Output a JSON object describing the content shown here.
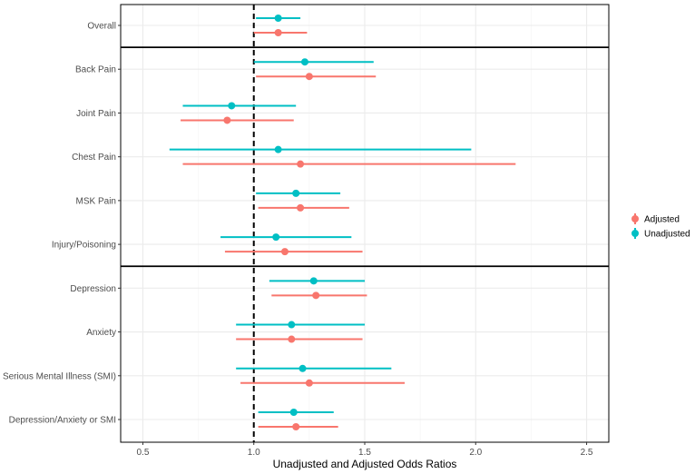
{
  "chart_data": {
    "type": "forest",
    "title": "",
    "xlabel": "Unadjusted and Adjusted Odds Ratios",
    "ylabel": "",
    "xlim": [
      0.4,
      2.6
    ],
    "xticks": [
      0.5,
      1.0,
      1.5,
      2.0,
      2.5
    ],
    "xtick_labels": [
      "0.5",
      "1.0",
      "1.5",
      "2.0",
      "2.5"
    ],
    "reference_line": 1.0,
    "grid": true,
    "legend_position": "right",
    "categories": [
      "Overall",
      "Back Pain",
      "Joint Pain",
      "Chest Pain",
      "MSK Pain",
      "Injury/Poisoning",
      "Depression",
      "Anxiety",
      "Serious Mental Illness (SMI)",
      "Depression/Anxiety or SMI"
    ],
    "group_separators_after": [
      "Overall",
      "Injury/Poisoning"
    ],
    "series": [
      {
        "name": "Adjusted",
        "color": "#F8766D",
        "estimates": [
          1.11,
          1.25,
          0.88,
          1.21,
          1.21,
          1.14,
          1.28,
          1.17,
          1.25,
          1.19
        ],
        "lower": [
          1.0,
          1.01,
          0.67,
          0.68,
          1.02,
          0.87,
          1.08,
          0.92,
          0.94,
          1.02
        ],
        "upper": [
          1.24,
          1.55,
          1.18,
          2.18,
          1.43,
          1.49,
          1.51,
          1.49,
          1.68,
          1.38
        ]
      },
      {
        "name": "Unadjusted",
        "color": "#00BFC4",
        "estimates": [
          1.11,
          1.23,
          0.9,
          1.11,
          1.19,
          1.1,
          1.27,
          1.17,
          1.22,
          1.18
        ],
        "lower": [
          1.01,
          1.0,
          0.68,
          0.62,
          1.01,
          0.85,
          1.07,
          0.92,
          0.92,
          1.02
        ],
        "upper": [
          1.21,
          1.54,
          1.19,
          1.98,
          1.39,
          1.44,
          1.5,
          1.5,
          1.62,
          1.36
        ]
      }
    ]
  }
}
